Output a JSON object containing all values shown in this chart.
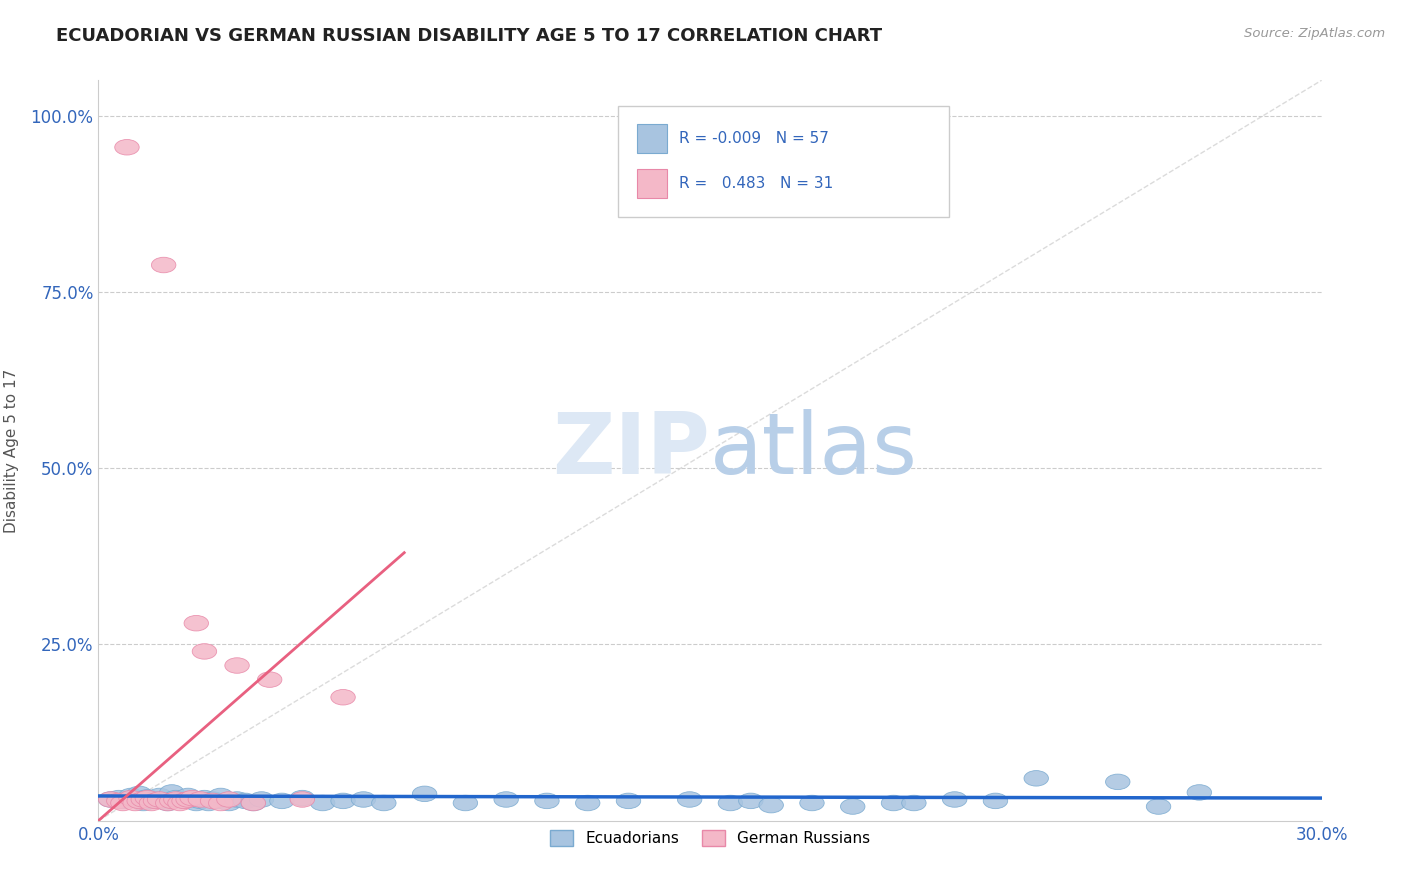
{
  "title": "ECUADORIAN VS GERMAN RUSSIAN DISABILITY AGE 5 TO 17 CORRELATION CHART",
  "source": "Source: ZipAtlas.com",
  "ylabel": "Disability Age 5 to 17",
  "xlim": [
    0.0,
    0.3
  ],
  "ylim": [
    0.0,
    1.05
  ],
  "xtick_labels": [
    "0.0%",
    "30.0%"
  ],
  "ytick_labels": [
    "",
    "25.0%",
    "50.0%",
    "75.0%",
    "100.0%"
  ],
  "ecuadorians_color": "#a8c4e0",
  "ecuadorians_edge": "#7aaad0",
  "german_russians_color": "#f4b8c8",
  "german_russians_edge": "#e888a8",
  "trendline_blue_color": "#2266cc",
  "trendline_pink_color": "#e86080",
  "diag_line_color": "#cccccc",
  "blue_scatter_x": [
    0.003,
    0.005,
    0.006,
    0.008,
    0.009,
    0.01,
    0.011,
    0.012,
    0.013,
    0.014,
    0.015,
    0.016,
    0.017,
    0.018,
    0.019,
    0.02,
    0.021,
    0.022,
    0.023,
    0.024,
    0.025,
    0.026,
    0.027,
    0.028,
    0.029,
    0.03,
    0.032,
    0.034,
    0.036,
    0.038,
    0.04,
    0.045,
    0.05,
    0.055,
    0.06,
    0.065,
    0.07,
    0.08,
    0.09,
    0.1,
    0.11,
    0.12,
    0.13,
    0.145,
    0.155,
    0.16,
    0.165,
    0.175,
    0.185,
    0.195,
    0.2,
    0.21,
    0.22,
    0.23,
    0.25,
    0.26,
    0.27
  ],
  "blue_scatter_y": [
    0.03,
    0.032,
    0.028,
    0.035,
    0.03,
    0.038,
    0.025,
    0.033,
    0.028,
    0.03,
    0.035,
    0.028,
    0.025,
    0.04,
    0.032,
    0.03,
    0.028,
    0.035,
    0.03,
    0.025,
    0.028,
    0.032,
    0.025,
    0.03,
    0.028,
    0.035,
    0.025,
    0.03,
    0.028,
    0.025,
    0.03,
    0.028,
    0.032,
    0.025,
    0.028,
    0.03,
    0.025,
    0.038,
    0.025,
    0.03,
    0.028,
    0.025,
    0.028,
    0.03,
    0.025,
    0.028,
    0.022,
    0.025,
    0.02,
    0.025,
    0.025,
    0.03,
    0.028,
    0.06,
    0.055,
    0.02,
    0.04
  ],
  "pink_scatter_x": [
    0.003,
    0.005,
    0.006,
    0.007,
    0.008,
    0.009,
    0.01,
    0.011,
    0.012,
    0.013,
    0.014,
    0.015,
    0.016,
    0.017,
    0.018,
    0.019,
    0.02,
    0.021,
    0.022,
    0.023,
    0.024,
    0.025,
    0.026,
    0.028,
    0.03,
    0.032,
    0.034,
    0.038,
    0.042,
    0.05,
    0.06
  ],
  "pink_scatter_y": [
    0.03,
    0.028,
    0.025,
    0.955,
    0.032,
    0.025,
    0.028,
    0.03,
    0.032,
    0.025,
    0.028,
    0.03,
    0.788,
    0.025,
    0.028,
    0.03,
    0.025,
    0.028,
    0.03,
    0.032,
    0.28,
    0.03,
    0.24,
    0.028,
    0.025,
    0.03,
    0.22,
    0.025,
    0.2,
    0.03,
    0.175
  ],
  "pink_trend_x": [
    0.0,
    0.075
  ],
  "pink_trend_y": [
    0.0,
    0.38
  ],
  "blue_trend_x": [
    0.0,
    0.3
  ],
  "blue_trend_y": [
    0.035,
    0.032
  ]
}
